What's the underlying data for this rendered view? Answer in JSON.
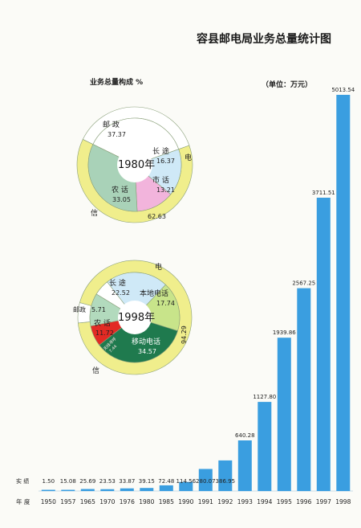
{
  "title": "容县邮电局业务总量统计图",
  "unit_label": "（单位：万元）",
  "composition_label": "业务总量构成 %",
  "row_labels": {
    "value": "实 绩",
    "year": "年 度"
  },
  "chart_data": {
    "type": "bar",
    "title": "容县邮电局业务总量统计图",
    "categories": [
      "1950",
      "1957",
      "1965",
      "1970",
      "1976",
      "1980",
      "1985",
      "1990",
      "1991",
      "1992",
      "1993",
      "1994",
      "1995",
      "1996",
      "1997",
      "1998"
    ],
    "values": [
      1.5,
      15.08,
      25.69,
      23.53,
      33.87,
      39.15,
      72.48,
      114.56,
      280.07,
      386.95,
      640.28,
      1127.8,
      1939.86,
      2567.25,
      3711.51,
      5013.54
    ],
    "value_labels": [
      "1.50",
      "15.08",
      "25.69",
      "23.53",
      "33.87",
      "39.15",
      "72.48",
      "114.56",
      "280.07",
      "386.95",
      "640.28",
      "1127.80",
      "1939.86",
      "2567.25",
      "3711.51",
      "5013.54"
    ],
    "ylim": [
      0,
      5013.54
    ],
    "bar_color": "#3a9ee0",
    "pies": [
      {
        "year_label": "1980年",
        "inner": [
          {
            "name": "邮 政",
            "value": "37.37",
            "v": 37.37,
            "color": "#ffffff"
          },
          {
            "name": "长 途",
            "value": "16.37",
            "v": 16.37,
            "color": "#cfe9f7"
          },
          {
            "name": "市 话",
            "value": "13.21",
            "v": 13.21,
            "color": "#f2b4dc"
          },
          {
            "name": "农 话",
            "value": "33.05",
            "v": 33.05,
            "color": "#a9d2b8"
          }
        ],
        "outer": [
          {
            "name": "邮政",
            "v": 37.37,
            "color": "#ffffff"
          },
          {
            "name": "电 信",
            "value": "62.63",
            "v": 62.63,
            "color": "#f0ee8c"
          }
        ]
      },
      {
        "year_label": "1998年",
        "inner": [
          {
            "name": "长 途",
            "value": "22.52",
            "v": 22.52,
            "color": "#cfe9f7"
          },
          {
            "name": "本地电话",
            "value": "17.74",
            "v": 17.74,
            "color": "#c8e48a"
          },
          {
            "name": "移动电话",
            "value": "34.57",
            "v": 34.57,
            "color": "#1f7a4e"
          },
          {
            "name": "无线寻呼",
            "value": "7.44",
            "v": 7.44,
            "color": "#e22a24"
          },
          {
            "name": "农 话",
            "value": "11.72",
            "v": 11.72,
            "color": "#b2dabd"
          },
          {
            "name": "邮政",
            "value": "5.71",
            "v": 5.71,
            "color": "#ffffff"
          }
        ],
        "outer": [
          {
            "name": "电 信",
            "value": "94.29",
            "v": 94.29,
            "color": "#f0ee8c"
          },
          {
            "name": "邮政",
            "v": 5.71,
            "color": "#ffffff"
          }
        ]
      }
    ]
  }
}
